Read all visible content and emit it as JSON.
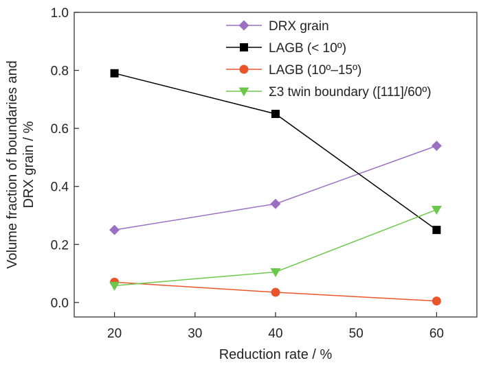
{
  "chart_data": {
    "type": "line",
    "xlabel": "Reduction rate / %",
    "ylabel_lines": [
      "Volume fraction of boundaries and",
      "DRX grain / %"
    ],
    "xlim": [
      15,
      65
    ],
    "ylim": [
      -0.05,
      1.0
    ],
    "xticks": [
      20,
      30,
      40,
      50,
      60
    ],
    "xtick_labels": [
      "20",
      "30",
      "40",
      "50",
      "60"
    ],
    "yticks": [
      0.0,
      0.2,
      0.4,
      0.6,
      0.8,
      1.0
    ],
    "ytick_labels": [
      "0.0",
      "0.2",
      "0.4",
      "0.6",
      "0.8",
      "1.0"
    ],
    "legend_position": "top-right",
    "grid": false,
    "x": [
      20,
      40,
      60
    ],
    "series": [
      {
        "name": "DRX grain",
        "values": [
          0.25,
          0.34,
          0.54
        ],
        "color": "#9b6fc4",
        "marker": "diamond"
      },
      {
        "name": "LAGB (< 10º)",
        "values": [
          0.79,
          0.65,
          0.25
        ],
        "color": "#000000",
        "marker": "square"
      },
      {
        "name": "LAGB (10º–15º)",
        "values": [
          0.07,
          0.035,
          0.005
        ],
        "color": "#e8552b",
        "marker": "circle"
      },
      {
        "name": "Σ3 twin boundary ([111]/60º)",
        "values": [
          0.058,
          0.105,
          0.32
        ],
        "color": "#6cc84a",
        "marker": "triangle-down"
      }
    ]
  }
}
